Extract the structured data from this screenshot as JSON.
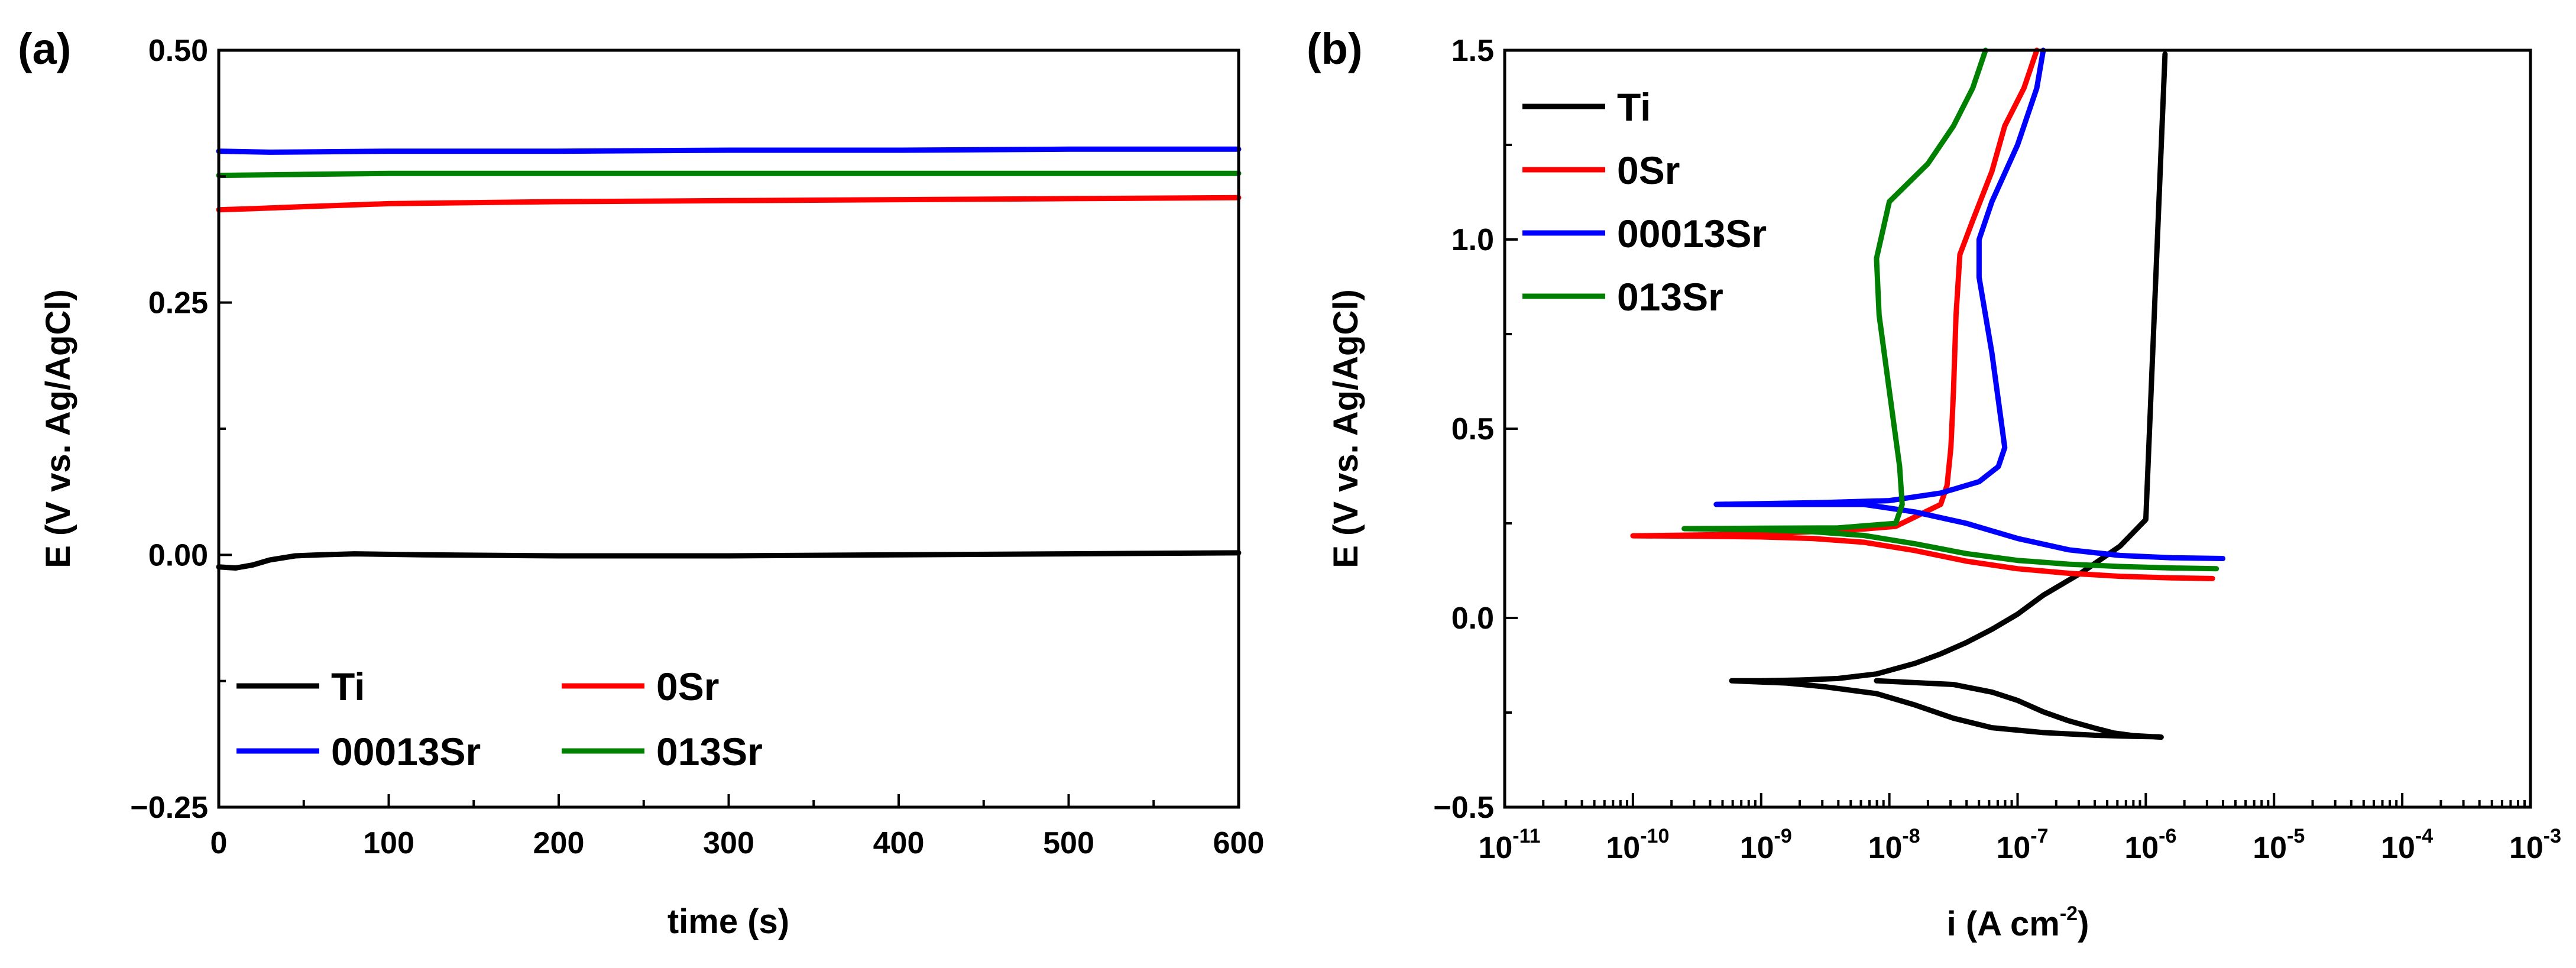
{
  "chart_data": [
    {
      "panel": "(a)",
      "type": "line",
      "xlabel": "time (s)",
      "ylabel": "E (V vs. Ag/AgCl)",
      "xlim": [
        0,
        600
      ],
      "ylim": [
        -0.25,
        0.5
      ],
      "xticks": [
        0,
        100,
        200,
        300,
        400,
        500,
        600
      ],
      "xtick_labels": [
        "0",
        "100",
        "200",
        "300",
        "400",
        "500",
        "600"
      ],
      "yticks": [
        -0.25,
        0,
        0.25,
        0.5
      ],
      "ytick_labels": [
        "−0.25",
        "0.00",
        "0.25",
        "0.50"
      ],
      "legend_position": "bottom-left",
      "series": [
        {
          "name": "Ti",
          "color": "#000000",
          "x": [
            0,
            10,
            20,
            30,
            45,
            60,
            80,
            120,
            200,
            300,
            400,
            500,
            600
          ],
          "y": [
            -0.012,
            -0.013,
            -0.01,
            -0.005,
            -0.001,
            0.0,
            0.001,
            0.0,
            -0.001,
            -0.001,
            0.0,
            0.001,
            0.002
          ]
        },
        {
          "name": "0Sr",
          "color": "#ff0000",
          "x": [
            0,
            20,
            50,
            100,
            200,
            300,
            400,
            500,
            600
          ],
          "y": [
            0.342,
            0.343,
            0.345,
            0.348,
            0.35,
            0.351,
            0.352,
            0.353,
            0.354
          ]
        },
        {
          "name": "00013Sr",
          "color": "#0000ff",
          "x": [
            0,
            30,
            100,
            200,
            300,
            400,
            500,
            600
          ],
          "y": [
            0.4,
            0.399,
            0.4,
            0.4,
            0.401,
            0.401,
            0.402,
            0.402
          ]
        },
        {
          "name": "013Sr",
          "color": "#008000",
          "x": [
            0,
            50,
            100,
            200,
            300,
            400,
            500,
            600
          ],
          "y": [
            0.376,
            0.377,
            0.378,
            0.378,
            0.378,
            0.378,
            0.378,
            0.378
          ]
        }
      ]
    },
    {
      "panel": "(b)",
      "type": "line",
      "xscale": "log",
      "xlabel": "i (A cm",
      "xlabel_sup": "-2",
      "xlabel_end": ")",
      "ylabel": "E (V vs. Ag/AgCl)",
      "xlim_exp": [
        -11,
        -3
      ],
      "ylim": [
        -0.5,
        1.5
      ],
      "xtick_exps": [
        -11,
        -10,
        -9,
        -8,
        -7,
        -6,
        -5,
        -4,
        -3
      ],
      "xtick_labels": [
        "10",
        "10",
        "10",
        "10",
        "10",
        "10",
        "10",
        "10",
        "10"
      ],
      "xtick_sups": [
        "-11",
        "-10",
        "-9",
        "-8",
        "-7",
        "-6",
        "-5",
        "-4",
        "-3"
      ],
      "yticks": [
        -0.5,
        0,
        0.5,
        1,
        1.5
      ],
      "ytick_labels": [
        "−0.5",
        "0.0",
        "0.5",
        "1.0",
        "1.5"
      ],
      "legend_position": "top-left",
      "series": [
        {
          "name": "Ti",
          "color": "#000000",
          "log_i": [
            -8.1,
            -7.5,
            -7.2,
            -7.0,
            -6.8,
            -6.6,
            -6.4,
            -6.25,
            -6.1,
            -5.88,
            -5.9,
            -6.1,
            -6.4,
            -6.8,
            -7.2,
            -7.5,
            -7.8,
            -8.1,
            -8.5,
            -8.8,
            -9.1,
            -9.23,
            -9.2,
            -9.0,
            -8.7,
            -8.4,
            -8.1,
            -7.8,
            -7.6,
            -7.4,
            -7.2,
            -7.0,
            -6.8,
            -6.5,
            -6.2,
            -6.0,
            -5.85
          ],
          "E": [
            -0.166,
            -0.176,
            -0.196,
            -0.218,
            -0.248,
            -0.272,
            -0.291,
            -0.304,
            -0.311,
            -0.315,
            -0.314,
            -0.313,
            -0.31,
            -0.303,
            -0.29,
            -0.265,
            -0.23,
            -0.2,
            -0.182,
            -0.172,
            -0.168,
            -0.166,
            -0.166,
            -0.166,
            -0.164,
            -0.16,
            -0.148,
            -0.12,
            -0.095,
            -0.065,
            -0.03,
            0.01,
            0.06,
            0.12,
            0.19,
            0.26,
            1.49
          ]
        },
        {
          "name": "0Sr",
          "color": "#ff0000",
          "log_i": [
            -5.48,
            -5.8,
            -6.2,
            -6.6,
            -7.0,
            -7.4,
            -7.8,
            -8.2,
            -8.6,
            -9.0,
            -9.5,
            -10.0,
            -9.5,
            -9.0,
            -8.6,
            -8.2,
            -7.95,
            -7.6,
            -7.55,
            -7.52,
            -7.5,
            -7.48,
            -7.45,
            -7.35,
            -7.2,
            -7.1,
            -6.95,
            -6.85
          ],
          "E": [
            0.104,
            0.106,
            0.11,
            0.118,
            0.13,
            0.15,
            0.178,
            0.2,
            0.21,
            0.214,
            0.216,
            0.217,
            0.219,
            0.222,
            0.228,
            0.235,
            0.242,
            0.3,
            0.35,
            0.45,
            0.6,
            0.8,
            0.96,
            1.05,
            1.18,
            1.3,
            1.4,
            1.5
          ]
        },
        {
          "name": "00013Sr",
          "color": "#0000ff",
          "log_i": [
            -5.4,
            -5.8,
            -6.2,
            -6.6,
            -7.0,
            -7.4,
            -7.8,
            -8.2,
            -8.6,
            -9.0,
            -9.35,
            -9.0,
            -8.5,
            -8.0,
            -7.6,
            -7.3,
            -7.15,
            -7.1,
            -7.12,
            -7.2,
            -7.3,
            -7.3,
            -7.2,
            -7.0,
            -6.85,
            -6.8
          ],
          "E": [
            0.157,
            0.159,
            0.165,
            0.18,
            0.21,
            0.25,
            0.28,
            0.3,
            0.3,
            0.3,
            0.3,
            0.302,
            0.305,
            0.31,
            0.33,
            0.36,
            0.4,
            0.45,
            0.5,
            0.7,
            0.9,
            1.0,
            1.1,
            1.25,
            1.4,
            1.5
          ]
        },
        {
          "name": "013Sr",
          "color": "#008000",
          "log_i": [
            -5.45,
            -5.8,
            -6.2,
            -6.6,
            -7.0,
            -7.4,
            -7.8,
            -8.2,
            -8.6,
            -9.0,
            -9.6,
            -9.0,
            -8.4,
            -7.95,
            -7.9,
            -7.92,
            -8.0,
            -8.08,
            -8.1,
            -8.0,
            -7.7,
            -7.5,
            -7.35,
            -7.25
          ],
          "E": [
            0.13,
            0.132,
            0.136,
            0.142,
            0.152,
            0.17,
            0.196,
            0.218,
            0.228,
            0.233,
            0.236,
            0.237,
            0.238,
            0.25,
            0.3,
            0.4,
            0.6,
            0.8,
            0.95,
            1.1,
            1.2,
            1.3,
            1.4,
            1.5
          ]
        }
      ]
    }
  ]
}
